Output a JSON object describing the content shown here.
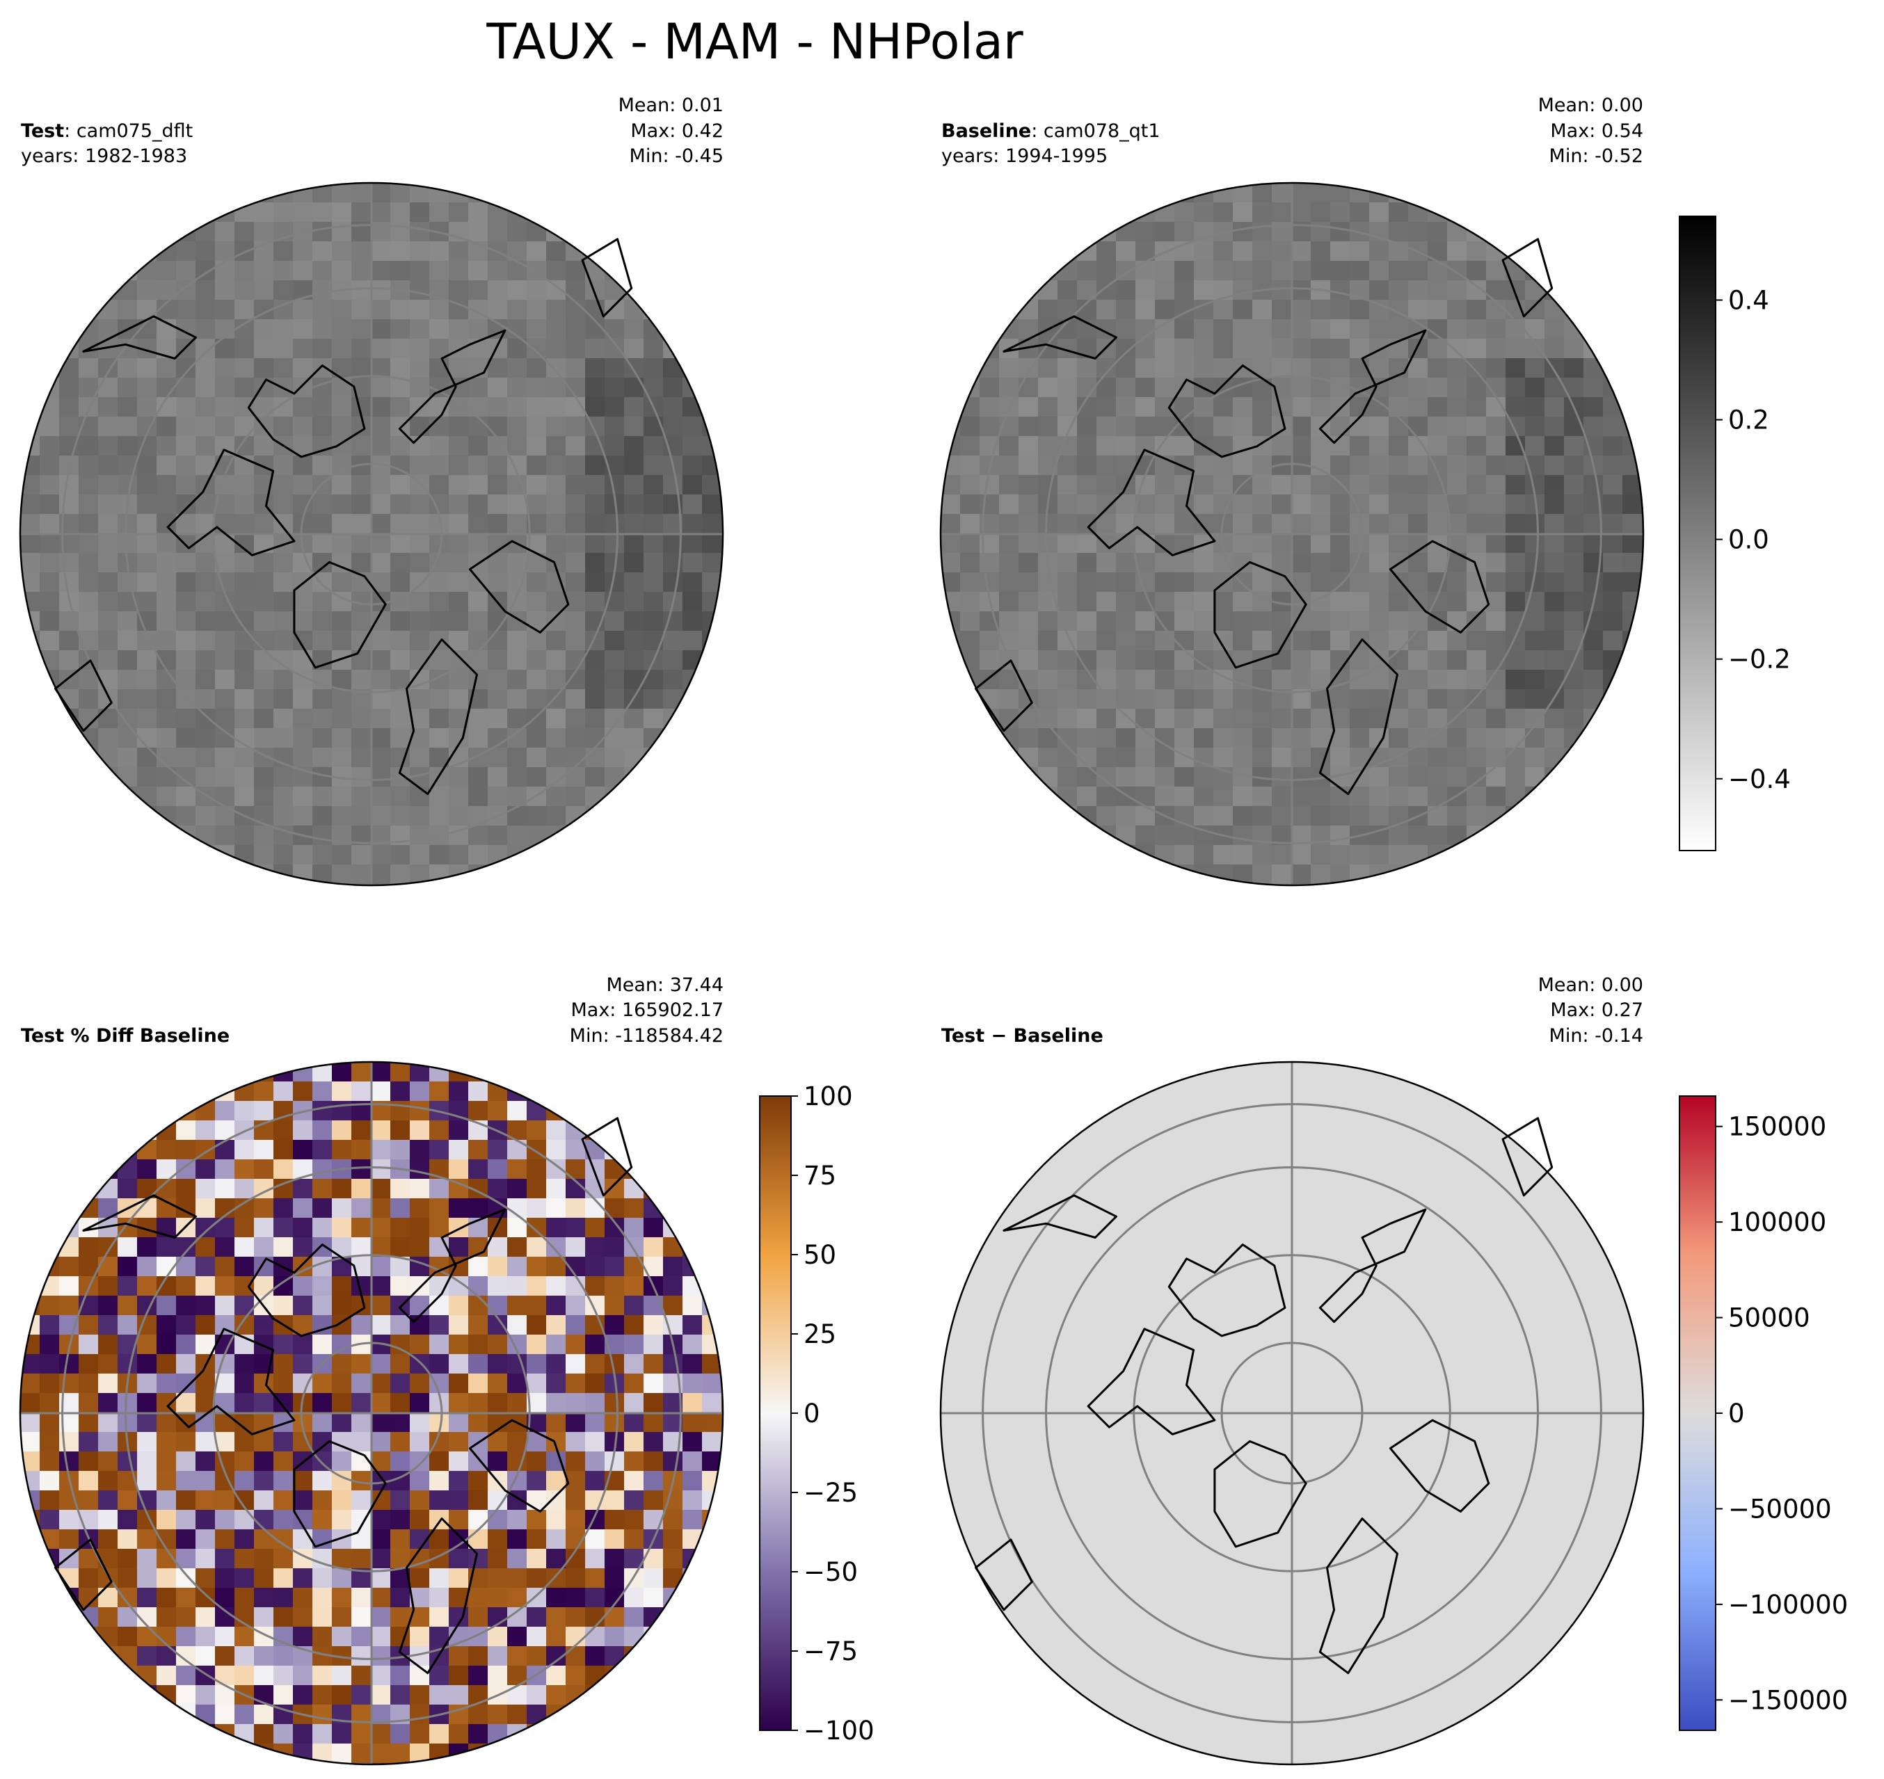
{
  "title": "TAUX - MAM - NHPolar",
  "colors": {
    "gray_cmap": [
      "#ffffff",
      "#000000"
    ],
    "diff_pct_cmap": [
      "#2d004b",
      "#8073ac",
      "#f7f7f7",
      "#f1a340",
      "#7f3b08"
    ],
    "diff_cmap": [
      "#3b4cc0",
      "#8db0fe",
      "#dddcdc",
      "#f49a7b",
      "#b40426"
    ],
    "ocean_gray": "#8c8c8c",
    "grid": "#808080"
  },
  "panels": {
    "test": {
      "label": "Test",
      "case": "cam075_dflt",
      "years": "years: 1982-1983",
      "mean": "Mean:  0.01",
      "max": "Max:  0.42",
      "min": "Min: -0.45"
    },
    "baseline": {
      "label": "Baseline",
      "case": "cam078_qt1",
      "years": "years: 1994-1995",
      "mean": "Mean:  0.00",
      "max": "Max:  0.54",
      "min": "Min: -0.52"
    },
    "pct": {
      "label": "Test % Diff Baseline",
      "mean": "Mean: 37.44",
      "max": "Max: 165902.17",
      "min": "Min: -118584.42"
    },
    "diff": {
      "label": "Test − Baseline",
      "mean": "Mean:  0.00",
      "max": "Max:  0.27",
      "min": "Min: -0.14"
    }
  },
  "chart_data": [
    {
      "type": "heatmap",
      "projection": "north-polar-stereographic",
      "panel": "test",
      "colorbar": "shared-with-baseline"
    },
    {
      "type": "heatmap",
      "projection": "north-polar-stereographic",
      "panel": "baseline",
      "colorbar": {
        "range": [
          -0.52,
          0.54
        ],
        "ticks": [
          0.4,
          0.2,
          0.0,
          -0.2,
          -0.4
        ],
        "tick_labels": [
          "0.4",
          "0.2",
          "0.0",
          "−0.2",
          "−0.4"
        ],
        "cmap": "gray_r"
      }
    },
    {
      "type": "heatmap",
      "projection": "north-polar-stereographic",
      "panel": "pct",
      "colorbar": {
        "range": [
          -100,
          100
        ],
        "ticks": [
          100,
          75,
          50,
          25,
          0,
          -25,
          -50,
          -75,
          -100
        ],
        "tick_labels": [
          "100",
          "75",
          "50",
          "25",
          "0",
          "−25",
          "−50",
          "−75",
          "−100"
        ],
        "cmap": "PuOr_r"
      }
    },
    {
      "type": "heatmap",
      "projection": "north-polar-stereographic",
      "panel": "diff",
      "colorbar": {
        "range": [
          -165902.17,
          165902.17
        ],
        "ticks": [
          150000,
          100000,
          50000,
          0,
          -50000,
          -100000,
          -150000
        ],
        "tick_labels": [
          "150000",
          "100000",
          "50000",
          "0",
          "−50000",
          "−100000",
          "−150000"
        ],
        "cmap": "coolwarm"
      }
    }
  ]
}
